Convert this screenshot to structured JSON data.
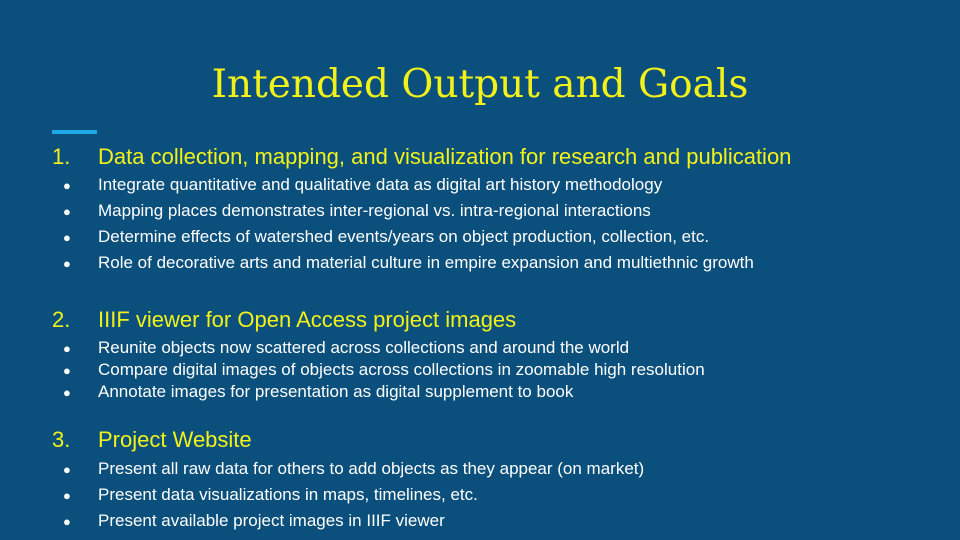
{
  "slide": {
    "title": "Intended Output and Goals",
    "colors": {
      "background": "#0b4f7c",
      "title": "#f2f21a",
      "accent": "#1ea8e8",
      "body": "#ffffff"
    },
    "sections": [
      {
        "number": "1.",
        "heading": "Data collection, mapping, and visualization for research and publication",
        "bullets": [
          "Integrate quantitative and qualitative data as digital art history methodology",
          "Mapping places demonstrates inter-regional vs. intra-regional interactions",
          "Determine effects of watershed events/years on object production, collection, etc.",
          "Role of decorative arts and material culture in empire expansion and multiethnic growth"
        ]
      },
      {
        "number": "2.",
        "heading": "IIIF viewer for Open Access project images",
        "bullets": [
          "Reunite objects now scattered across collections and around the world",
          "Compare digital images of objects across collections in zoomable high resolution",
          "Annotate images for presentation as digital supplement to book"
        ]
      },
      {
        "number": "3.",
        "heading": "Project Website",
        "bullets": [
          "Present all raw data for others to add objects as they appear (on market)",
          "Present data visualizations in maps, timelines, etc.",
          "Present available project images in IIIF viewer"
        ]
      }
    ],
    "bullet_glyph": "●"
  }
}
